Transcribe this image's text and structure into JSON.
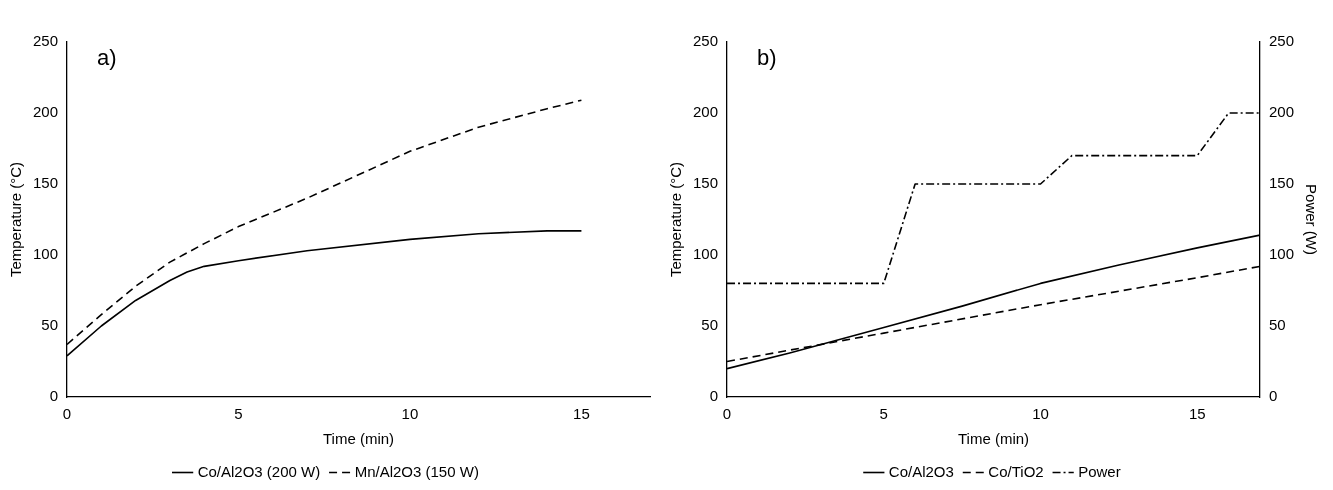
{
  "chart_data": [
    {
      "type": "line",
      "xlabel": "Time (min)",
      "ylabel": "Temperature (°C)",
      "xlim": [
        0,
        17
      ],
      "xticks": [
        0,
        5,
        10,
        15
      ],
      "ylim": [
        0,
        250
      ],
      "yticks": [
        0,
        50,
        100,
        150,
        200,
        250
      ],
      "legend": "bottom",
      "marker": "none",
      "annotations": [
        "a)"
      ],
      "series": [
        {
          "name": "Co/Al2O3 (200 W)",
          "color": "#000000",
          "line_style": "solid",
          "x": [
            0,
            1,
            2,
            3,
            3.5,
            4,
            5,
            7,
            10,
            12,
            14,
            15
          ],
          "values": [
            29,
            50,
            68,
            82,
            88,
            92,
            96,
            103,
            111,
            115,
            117,
            117
          ]
        },
        {
          "name": "Mn/Al2O3 (150 W)",
          "color": "#000000",
          "line_style": "dashed",
          "x": [
            0,
            1,
            2,
            3,
            4,
            5,
            7,
            10,
            12,
            14,
            15
          ],
          "values": [
            37,
            58,
            78,
            95,
            108,
            120,
            140,
            173,
            190,
            203,
            209
          ]
        }
      ]
    },
    {
      "type": "line",
      "xlabel": "Time (min)",
      "ylabel": "Temperature (°C)",
      "y2label": "Power (W)",
      "xlim": [
        0,
        17
      ],
      "xticks": [
        0,
        5,
        10,
        15
      ],
      "ylim": [
        0,
        250
      ],
      "yticks": [
        0,
        50,
        100,
        150,
        200,
        250
      ],
      "y2lim": [
        0,
        250
      ],
      "y2ticks": [
        0,
        50,
        100,
        150,
        200,
        250
      ],
      "legend": "bottom",
      "marker": "none",
      "annotations": [
        "b)"
      ],
      "series": [
        {
          "name": "Co/Al2O3",
          "color": "#000000",
          "line_style": "solid",
          "x": [
            0,
            2,
            5,
            7.5,
            10,
            12.5,
            15,
            17
          ],
          "values": [
            20,
            31,
            49,
            64,
            80,
            93,
            105,
            114
          ]
        },
        {
          "name": "Co/TiO2",
          "color": "#000000",
          "line_style": "dashed",
          "x": [
            0,
            5,
            10,
            15,
            17
          ],
          "values": [
            25,
            45,
            65,
            84,
            92
          ]
        },
        {
          "name": "Power",
          "color": "#000000",
          "line_style": "dashdot",
          "axis": "y2",
          "x": [
            0,
            5,
            6,
            10,
            11,
            15,
            16,
            17
          ],
          "values": [
            80,
            80,
            150,
            150,
            170,
            170,
            200,
            200
          ]
        }
      ]
    }
  ]
}
